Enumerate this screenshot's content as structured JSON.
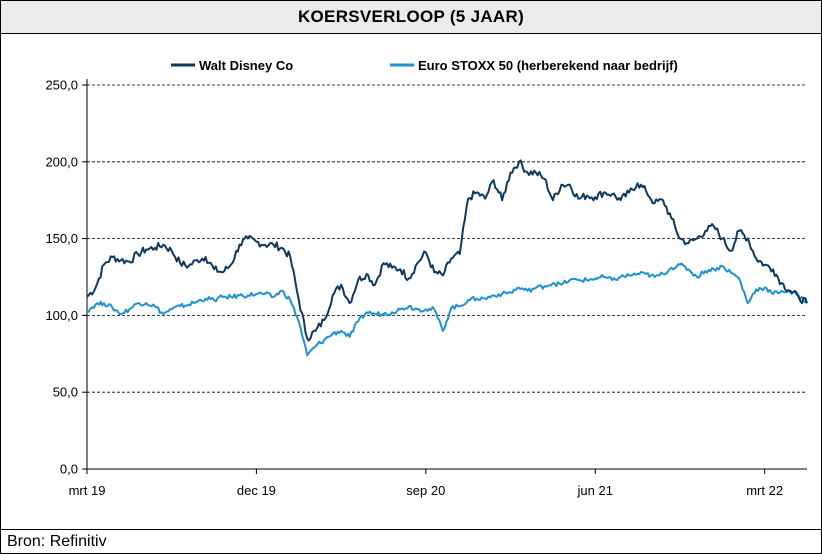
{
  "header": {
    "title": "KOERSVERLOOP (5 JAAR)"
  },
  "footer": {
    "source": "Bron: Refinitiv"
  },
  "chart_data": {
    "type": "line",
    "ylim": [
      0,
      250
    ],
    "y_ticks": [
      "0,0",
      "50,0",
      "100,0",
      "150,0",
      "200,0",
      "250,0"
    ],
    "x_ticks": [
      "mrt 19",
      "dec 19",
      "sep 20",
      "jun 21",
      "mrt 22"
    ],
    "grid": "horizontal dashed",
    "legend_position": "top",
    "series": [
      {
        "name": "Walt Disney Co",
        "color": "#0f3a5f",
        "x": [
          0,
          0.5,
          1,
          1.5,
          2,
          2.5,
          3,
          3.5,
          4,
          4.5,
          5,
          5.5,
          6,
          6.5,
          7,
          7.5,
          8,
          8.5,
          9,
          9.5,
          10,
          10.5,
          11,
          11.5,
          12,
          12.5,
          13,
          13.5,
          14,
          14.5,
          15,
          15.5,
          16,
          16.5,
          17,
          17.5,
          18,
          18.5,
          19,
          19.5,
          20,
          20.5,
          21,
          21.5,
          22,
          22.5,
          23,
          23.5,
          24,
          24.5,
          25,
          25.5,
          26,
          26.5,
          27,
          27.5,
          28,
          28.5,
          29,
          29.5,
          30,
          30.5,
          31,
          31.5,
          32,
          32.5,
          33,
          33.5,
          34,
          34.5,
          35,
          35.5,
          36,
          36.5,
          37,
          37.5,
          38,
          38.5,
          39,
          39.5,
          40,
          40.5,
          41,
          41.5,
          42,
          42.5
        ],
        "values": [
          112,
          118,
          133,
          138,
          136,
          135,
          140,
          143,
          144,
          146,
          142,
          134,
          132,
          136,
          138,
          130,
          128,
          133,
          146,
          150,
          148,
          146,
          146,
          144,
          138,
          110,
          85,
          90,
          97,
          113,
          120,
          108,
          123,
          127,
          120,
          134,
          131,
          130,
          124,
          134,
          141,
          128,
          126,
          137,
          140,
          176,
          180,
          176,
          188,
          175,
          193,
          200,
          193,
          193,
          189,
          175,
          185,
          185,
          176,
          178,
          177,
          180,
          179,
          175,
          180,
          186,
          181,
          173,
          175,
          163,
          150,
          147,
          150,
          155,
          158,
          150,
          142,
          155,
          150,
          137,
          133,
          130,
          121,
          116,
          112,
          108
        ],
        "x_ticks_at": [
          0,
          10,
          20,
          30,
          40
        ]
      },
      {
        "name": "Euro STOXX 50 (herberekend naar bedrijf)",
        "color": "#1f92d0",
        "x": [
          0,
          0.5,
          1,
          1.5,
          2,
          2.5,
          3,
          3.5,
          4,
          4.5,
          5,
          5.5,
          6,
          6.5,
          7,
          7.5,
          8,
          8.5,
          9,
          9.5,
          10,
          10.5,
          11,
          11.5,
          12,
          12.5,
          13,
          13.5,
          14,
          14.5,
          15,
          15.5,
          16,
          16.5,
          17,
          17.5,
          18,
          18.5,
          19,
          19.5,
          20,
          20.5,
          21,
          21.5,
          22,
          22.5,
          23,
          23.5,
          24,
          24.5,
          25,
          25.5,
          26,
          26.5,
          27,
          27.5,
          28,
          28.5,
          29,
          29.5,
          30,
          30.5,
          31,
          31.5,
          32,
          32.5,
          33,
          33.5,
          34,
          34.5,
          35,
          35.5,
          36,
          36.5,
          37,
          37.5,
          38,
          38.5,
          39,
          39.5,
          40,
          40.5,
          41,
          41.5,
          42,
          42.5
        ],
        "values": [
          103,
          107,
          108,
          105,
          101,
          104,
          108,
          108,
          106,
          101,
          104,
          106,
          107,
          109,
          111,
          110,
          112,
          112,
          113,
          113,
          114,
          114,
          112,
          116,
          110,
          96,
          74,
          80,
          84,
          88,
          90,
          86,
          96,
          102,
          101,
          101,
          102,
          104,
          106,
          104,
          104,
          104,
          90,
          105,
          106,
          110,
          111,
          111,
          113,
          114,
          115,
          118,
          116,
          118,
          119,
          121,
          120,
          123,
          123,
          123,
          124,
          125,
          123,
          125,
          126,
          127,
          127,
          125,
          127,
          131,
          133,
          130,
          125,
          129,
          130,
          132,
          128,
          124,
          108,
          117,
          118,
          114,
          116,
          115,
          113,
          108
        ]
      }
    ]
  }
}
